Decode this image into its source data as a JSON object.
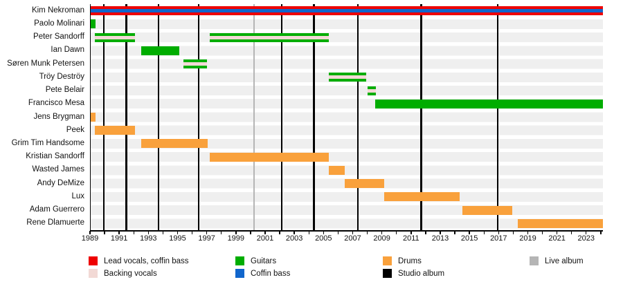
{
  "colors": {
    "lead_vocals": "#ee0000",
    "backing_vocals": "#f2d9d5",
    "guitars": "#00ad00",
    "coffin_bass": "#1166cc",
    "drums": "#f9a13c",
    "studio_album": "#000000",
    "live_album": "#b5b5b5"
  },
  "chart_data": {
    "type": "timeline",
    "description": "Band members timeline (Gantt-style) with studio and live album release lines",
    "x_axis": {
      "min": 1989,
      "max": 2024.1,
      "label_start": 1989,
      "label_end": 2023,
      "label_step": 2,
      "minor_tick_step": 1
    },
    "members": [
      {
        "name": "Kim Nekroman",
        "bars": [
          {
            "start": 1989,
            "end": 2024.1,
            "role": "lead_vocals",
            "stripe": "coffin_bass"
          }
        ]
      },
      {
        "name": "Paolo Molinari",
        "bars": [
          {
            "start": 1989,
            "end": 1989.35,
            "role": "guitars"
          }
        ]
      },
      {
        "name": "Peter Sandorff",
        "bars": [
          {
            "start": 1989.3,
            "end": 1992.05,
            "role": "guitars",
            "stripe": "backing_vocals"
          },
          {
            "start": 1997.15,
            "end": 2005.3,
            "role": "guitars",
            "stripe": "backing_vocals"
          }
        ]
      },
      {
        "name": "Ian Dawn",
        "bars": [
          {
            "start": 1992.45,
            "end": 1995.05,
            "role": "guitars"
          }
        ]
      },
      {
        "name": "Søren Munk Petersen",
        "bars": [
          {
            "start": 1995.35,
            "end": 1996.95,
            "role": "guitars",
            "stripe": "backing_vocals"
          }
        ]
      },
      {
        "name": "Tröy Deströy",
        "bars": [
          {
            "start": 2005.3,
            "end": 2007.9,
            "role": "guitars",
            "stripe": "backing_vocals"
          }
        ]
      },
      {
        "name": "Pete Belair",
        "bars": [
          {
            "start": 2007.95,
            "end": 2008.55,
            "role": "guitars",
            "stripe": "backing_vocals"
          }
        ]
      },
      {
        "name": "Francisco Mesa",
        "bars": [
          {
            "start": 2008.5,
            "end": 2024.1,
            "role": "guitars"
          }
        ]
      },
      {
        "name": "Jens Brygman",
        "bars": [
          {
            "start": 1989,
            "end": 1989.35,
            "role": "drums"
          }
        ]
      },
      {
        "name": "Peek",
        "bars": [
          {
            "start": 1989.3,
            "end": 1992.05,
            "role": "drums"
          }
        ]
      },
      {
        "name": "Grim Tim Handsome",
        "bars": [
          {
            "start": 1992.45,
            "end": 1997.0,
            "role": "drums"
          }
        ]
      },
      {
        "name": "Kristian Sandorff",
        "bars": [
          {
            "start": 1997.15,
            "end": 2005.3,
            "role": "drums"
          }
        ]
      },
      {
        "name": "Wasted James",
        "bars": [
          {
            "start": 2005.3,
            "end": 2006.4,
            "role": "drums"
          }
        ]
      },
      {
        "name": "Andy DeMize",
        "bars": [
          {
            "start": 2006.4,
            "end": 2009.1,
            "role": "drums"
          }
        ]
      },
      {
        "name": "Lux",
        "bars": [
          {
            "start": 2009.1,
            "end": 2014.3,
            "role": "drums"
          }
        ]
      },
      {
        "name": "Adam Guerrero",
        "bars": [
          {
            "start": 2014.45,
            "end": 2017.9,
            "role": "drums"
          }
        ]
      },
      {
        "name": "Rene Dlamuerte",
        "bars": [
          {
            "start": 2018.25,
            "end": 2024.1,
            "role": "drums"
          }
        ]
      }
    ],
    "events": {
      "studio_albums": [
        1989.9,
        1991.45,
        1993.65,
        1996.4,
        2002.1,
        2004.3,
        2007.3,
        2011.65,
        2016.9
      ],
      "live_albums": [
        2000.2
      ]
    }
  },
  "legend": {
    "items": [
      {
        "label": "Lead vocals, coffin bass",
        "color_key": "lead_vocals"
      },
      {
        "label": "Backing vocals",
        "color_key": "backing_vocals"
      },
      {
        "label": "Guitars",
        "color_key": "guitars"
      },
      {
        "label": "Coffin bass",
        "color_key": "coffin_bass"
      },
      {
        "label": "Drums",
        "color_key": "drums"
      },
      {
        "label": "Studio album",
        "color_key": "studio_album"
      },
      {
        "label": "Live album",
        "color_key": "live_album"
      }
    ]
  }
}
